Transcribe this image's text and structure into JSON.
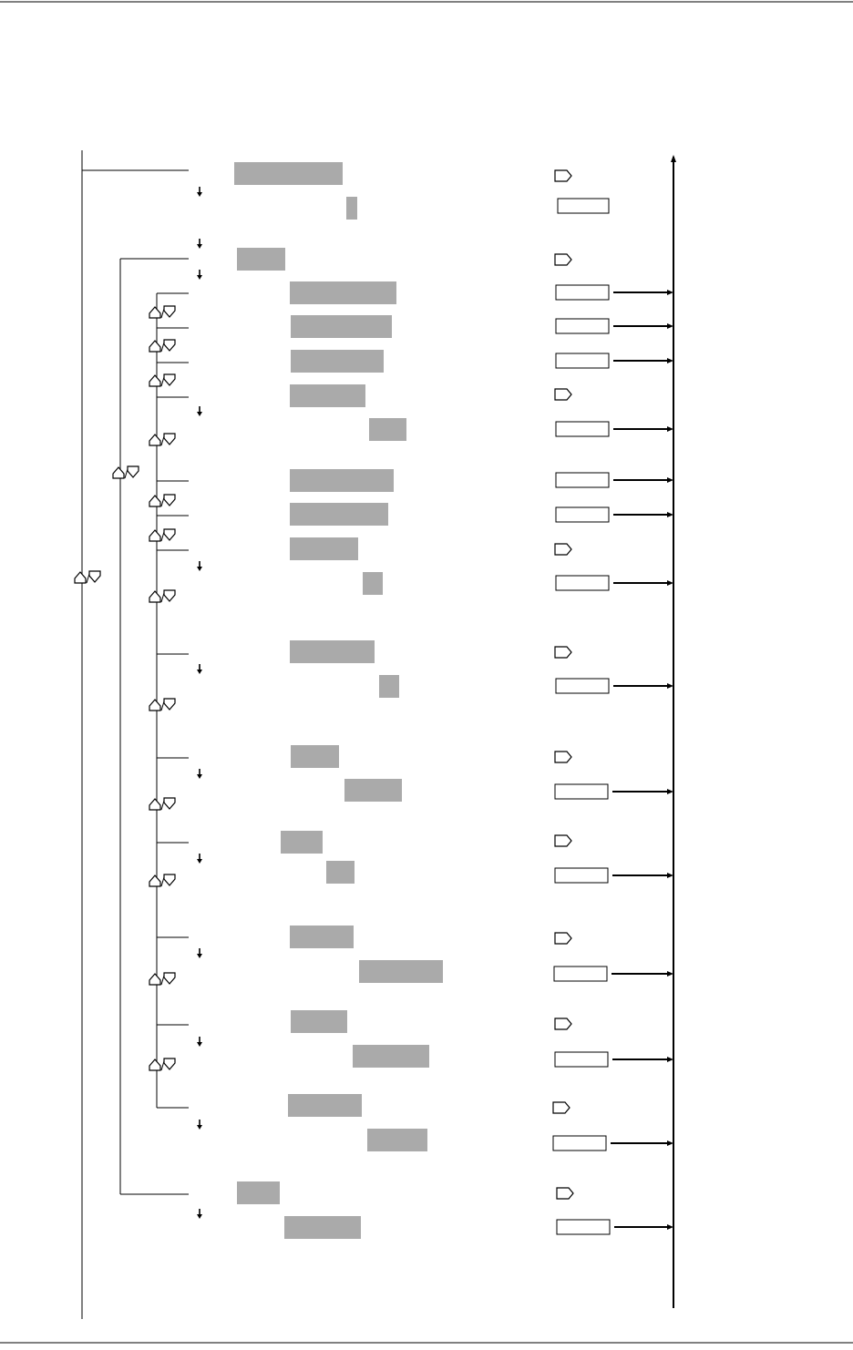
{
  "diagram": {
    "kind": "menu-structure-flowchart",
    "colors": {
      "text_placeholder": "#aaaaaa",
      "line": "#000000",
      "background": "#ffffff"
    },
    "icons": {
      "enter": "enter-key-icon",
      "up_down": "up-down-keys-icon",
      "step_down": "step-down-arrow-icon",
      "output": "output-arrow-icon"
    }
  }
}
